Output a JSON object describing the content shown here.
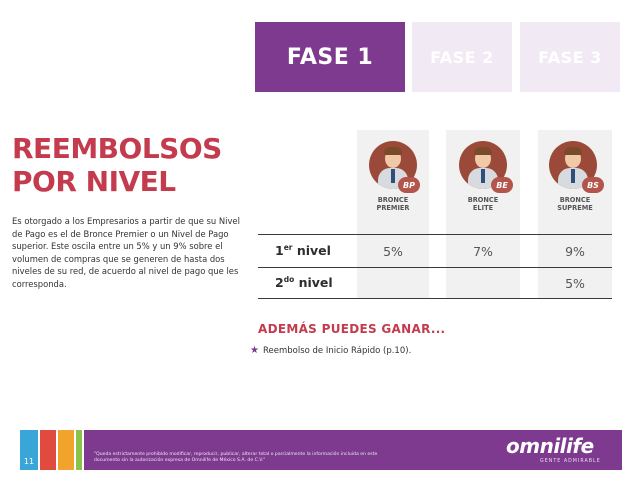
{
  "tabs": [
    {
      "label": "FASE 1"
    },
    {
      "label": "FASE 2"
    },
    {
      "label": "FASE 3"
    }
  ],
  "title_line1": "REEMBOLSOS",
  "title_line2": "POR NIVEL",
  "description": "Es otorgado a los Empresarios a partir de que su Nivel de Pago es el de Bronce Premier o un Nivel de Pago superior. Este oscila entre un 5% y un 9% sobre el volumen de compras que se generen de hasta dos niveles de su red, de acuerdo al nivel de pago que les corresponda.",
  "columns": [
    {
      "badge": "BP",
      "line1": "BRONCE",
      "line2": "PREMIER"
    },
    {
      "badge": "BE",
      "line1": "BRONCE",
      "line2": "ELITE"
    },
    {
      "badge": "BS",
      "line1": "BRONCE",
      "line2": "SUPREME"
    }
  ],
  "rows": [
    {
      "num": "1",
      "sup": "er",
      "label": " nivel",
      "values": [
        "5%",
        "7%",
        "9%"
      ]
    },
    {
      "num": "2",
      "sup": "do",
      "label": " nivel",
      "values": [
        "",
        "",
        "5%"
      ]
    }
  ],
  "extra": {
    "title": "ADEMÁS PUEDES GANAR...",
    "item": "Reembolso de Inicio Rápido (p.10)."
  },
  "footer": {
    "page_number": "11",
    "disclaimer": "\"Queda estrictamente prohibido modificar, reproducir, publicar, alterar total o parcialmente la información incluida en este documento sin la autorización expresa de Omnilife de México S.A. de C.V.\"",
    "logo": "omnilife",
    "logo_sub": "GENTE ADMIRABLE"
  },
  "colors": {
    "purple": "#7d3a8f",
    "red": "#c33b4d",
    "footer_squares": [
      "#3aa6d8",
      "#e04a3f",
      "#f2a32c",
      "#8bc34a"
    ]
  }
}
